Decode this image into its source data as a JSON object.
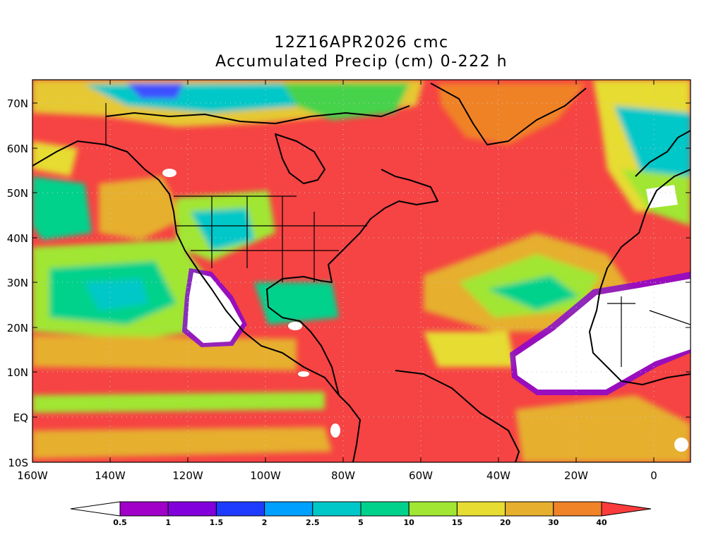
{
  "title_line1": "12Z16APR2026 cmc",
  "title_line2": "Accumulated Precip (cm) 0-222 h",
  "lon_labels": [
    "160W",
    "140W",
    "120W",
    "100W",
    "80W",
    "60W",
    "40W",
    "20W",
    "0"
  ],
  "lat_labels": [
    "70N",
    "60N",
    "50N",
    "40N",
    "30N",
    "20N",
    "10N",
    "EQ",
    "10S"
  ],
  "colorbar": {
    "labels": [
      "0.5",
      "1",
      "1.5",
      "2",
      "2.5",
      "5",
      "10",
      "15",
      "20",
      "30",
      "40"
    ],
    "colors": [
      "#ffffff",
      "#a000c8",
      "#8200dc",
      "#1e3cff",
      "#00a0ff",
      "#00c8c8",
      "#00d28c",
      "#a0e632",
      "#e6dc32",
      "#e6af2d",
      "#f08228",
      "#fa3c3c"
    ]
  },
  "colors": {
    "background": "#ffffff",
    "frame": "#000000",
    "heavy": "#f64343"
  }
}
